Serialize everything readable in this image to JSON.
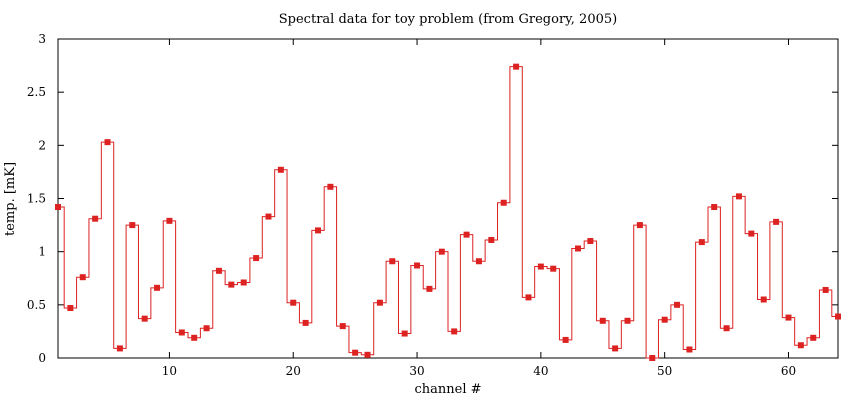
{
  "chart_data": {
    "type": "line",
    "style": "histogram-steps with point markers",
    "title": "Spectral data for toy problem (from Gregory, 2005)",
    "xlabel": "channel #",
    "ylabel": "temp. [mK]",
    "xlim": [
      1,
      64
    ],
    "ylim": [
      0,
      3
    ],
    "xticks": [
      10,
      20,
      30,
      40,
      50,
      60
    ],
    "xtick_labels": [
      "10",
      "20",
      "30",
      "40",
      "50",
      "60"
    ],
    "yticks": [
      0,
      0.5,
      1,
      1.5,
      2,
      2.5,
      3
    ],
    "ytick_labels": [
      "0",
      "0.5",
      "1",
      "1.5",
      "2",
      "2.5",
      "3"
    ],
    "grid": false,
    "legend": "none",
    "colors": {
      "series": "#dd2222",
      "axes": "#000000"
    },
    "series": [
      {
        "x": [
          1,
          2,
          3,
          4,
          5,
          6,
          7,
          8,
          9,
          10,
          11,
          12,
          13,
          14,
          15,
          16,
          17,
          18,
          19,
          20,
          21,
          22,
          23,
          24,
          25,
          26,
          27,
          28,
          29,
          30,
          31,
          32,
          33,
          34,
          35,
          36,
          37,
          38,
          39,
          40,
          41,
          42,
          43,
          44,
          45,
          46,
          47,
          48,
          49,
          50,
          51,
          52,
          53,
          54,
          55,
          56,
          57,
          58,
          59,
          60,
          61,
          62,
          63,
          64
        ],
        "y": [
          1.42,
          0.47,
          0.76,
          1.31,
          2.03,
          0.09,
          1.25,
          0.37,
          0.66,
          1.29,
          0.24,
          0.19,
          0.28,
          0.82,
          0.69,
          0.71,
          0.94,
          1.33,
          1.77,
          0.52,
          0.33,
          1.2,
          1.61,
          0.3,
          0.05,
          0.03,
          0.52,
          0.91,
          0.23,
          0.87,
          0.65,
          1.0,
          0.25,
          1.16,
          0.91,
          1.11,
          1.46,
          2.74,
          0.57,
          0.86,
          0.84,
          0.17,
          1.03,
          1.1,
          0.35,
          0.09,
          0.35,
          1.25,
          0.0,
          0.36,
          0.5,
          0.08,
          1.09,
          1.42,
          0.28,
          1.52,
          1.17,
          0.55,
          1.28,
          0.38,
          0.12,
          0.19,
          0.64,
          0.39
        ]
      }
    ]
  }
}
